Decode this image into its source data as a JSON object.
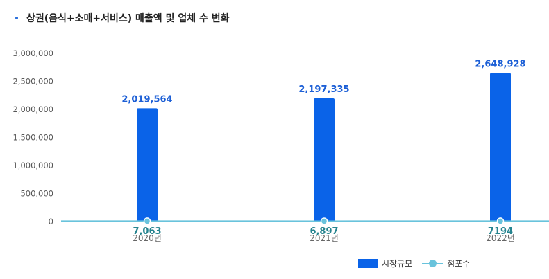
{
  "header": {
    "title": "상권(음식+소매+서비스) 매출액 및 업체 수 변화"
  },
  "colors": {
    "bar": "#0a63e8",
    "line": "#69c3dc",
    "bar_label": "#1c5fd6",
    "point_label": "#26848f"
  },
  "chart_data": {
    "type": "bar",
    "categories": [
      "2020년",
      "2021년",
      "2022년"
    ],
    "series": [
      {
        "name": "시장규모",
        "type": "bar",
        "values": [
          2019564,
          2197335,
          2648928
        ],
        "labels": [
          "2,019,564",
          "2,197,335",
          "2,648,928"
        ]
      },
      {
        "name": "점포수",
        "type": "line",
        "values": [
          7063,
          6897,
          7194
        ],
        "labels": [
          "7,063",
          "6,897",
          "7194"
        ]
      }
    ],
    "yticks": [
      "0",
      "500,000",
      "1,000,000",
      "1,500,000",
      "2,000,000",
      "2,500,000",
      "3,000,000"
    ],
    "ylim": [
      0,
      3000000
    ],
    "grid": false,
    "legend": "bottom-right"
  }
}
